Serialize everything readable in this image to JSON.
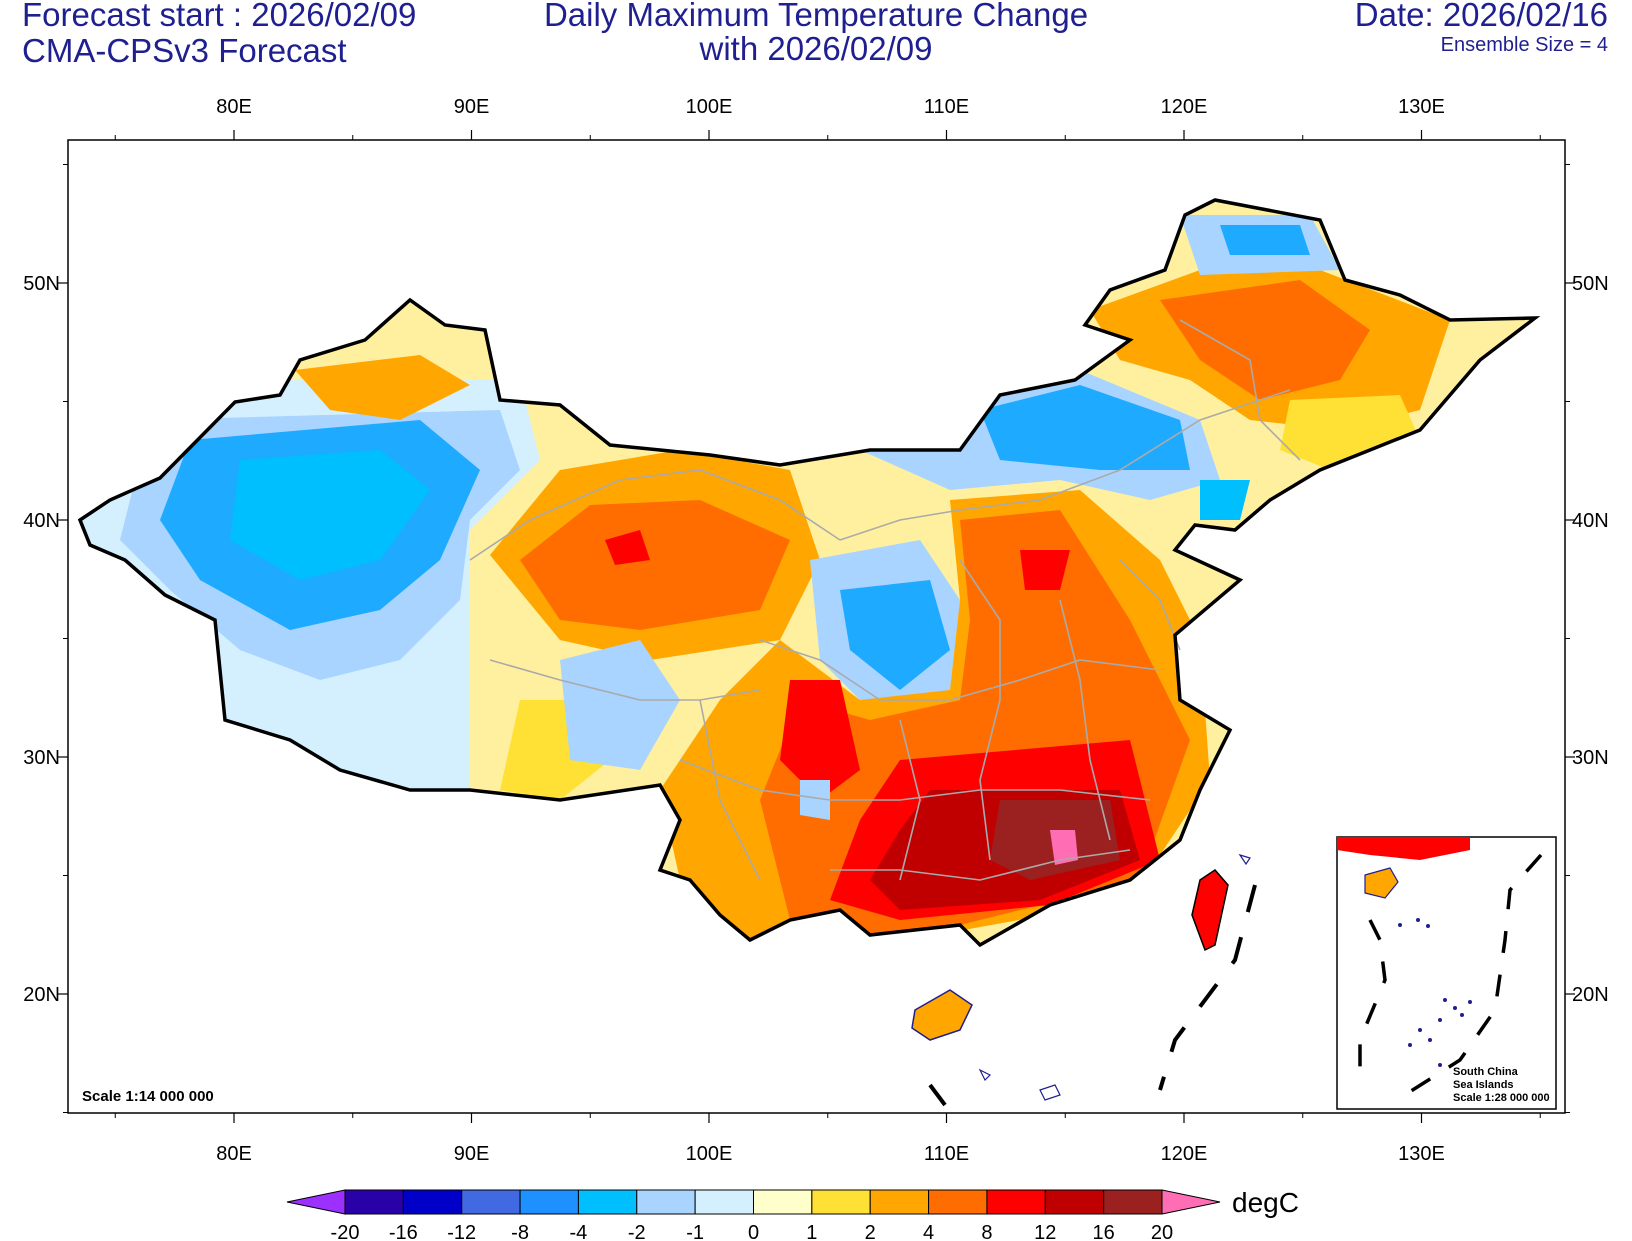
{
  "header": {
    "forecast_start": "Forecast start : 2026/02/09",
    "model": "CMA-CPSv3 Forecast",
    "title_line1": "Daily Maximum Temperature Change",
    "title_line2": "with 2026/02/09",
    "date": "Date: 2026/02/16",
    "ensemble": "Ensemble Size = 4"
  },
  "map": {
    "lon_labels": [
      "80E",
      "90E",
      "100E",
      "110E",
      "120E",
      "130E"
    ],
    "lat_labels": [
      "50N",
      "40N",
      "30N",
      "20N"
    ],
    "scale_label": "Scale 1:14 000 000",
    "inset": {
      "line1": "South China",
      "line2": "Sea Islands",
      "line3": "Scale 1:28 000 000"
    }
  },
  "colorbar": {
    "labels": [
      "-20",
      "-16",
      "-12",
      "-8",
      "-4",
      "-2",
      "-1",
      "0",
      "1",
      "2",
      "4",
      "8",
      "12",
      "16",
      "20"
    ],
    "colors": [
      "#2a00a8",
      "#0000c8",
      "#4169e1",
      "#1e90ff",
      "#00bfff",
      "#a8d4ff",
      "#d4f0ff",
      "#ffffcc",
      "#ffe035",
      "#ffa700",
      "#ff6d00",
      "#ff0000",
      "#c00000",
      "#9b2020"
    ],
    "low_color": "#9b30ff",
    "high_color": "#ff6eb4",
    "unit": "degC"
  },
  "colors": {
    "title": "#1f1f8f",
    "border": "#000000",
    "province": "#aaaaaa"
  }
}
